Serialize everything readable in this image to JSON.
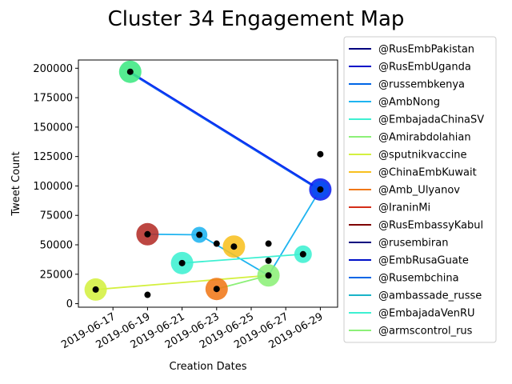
{
  "chart_data": {
    "type": "scatter",
    "title": "Cluster 34 Engagement Map",
    "xlabel": "Creation Dates",
    "ylabel": "Tweet Count",
    "xlim": [
      "2019-06-15",
      "2019-06-30"
    ],
    "ylim": [
      -3000,
      207000
    ],
    "xticks": [
      "2019-06-17",
      "2019-06-19",
      "2019-06-21",
      "2019-06-23",
      "2019-06-25",
      "2019-06-27",
      "2019-06-29"
    ],
    "yticks": [
      0,
      25000,
      50000,
      75000,
      100000,
      125000,
      150000,
      175000,
      200000
    ],
    "ytick_labels": [
      "0",
      "25000",
      "50000",
      "75000",
      "100000",
      "125000",
      "150000",
      "175000",
      "200000"
    ],
    "legend_position": "outside-right",
    "legend": [
      {
        "label": "@RusEmbPakistan",
        "color": "#00007f"
      },
      {
        "label": "@RusEmbUganda",
        "color": "#0010c8"
      },
      {
        "label": "@russembkenya",
        "color": "#0066e6"
      },
      {
        "label": "@AmbNong",
        "color": "#1fb4f0"
      },
      {
        "label": "@EmbajadaChinaSV",
        "color": "#3ef0d2"
      },
      {
        "label": "@Amirabdolahian",
        "color": "#8cf078"
      },
      {
        "label": "@sputnikvaccine",
        "color": "#d4f040"
      },
      {
        "label": "@ChinaEmbKuwait",
        "color": "#f8c020"
      },
      {
        "label": "@Amb_Ulyanov",
        "color": "#f07818"
      },
      {
        "label": "@IraninMi",
        "color": "#d42d18"
      },
      {
        "label": "@RusEmbassyKabul",
        "color": "#7f0000"
      },
      {
        "label": "@rusembiran",
        "color": "#00007f"
      },
      {
        "label": "@EmbRusaGuate",
        "color": "#0010c8"
      },
      {
        "label": "@Rusembchina",
        "color": "#0066e6"
      },
      {
        "label": "@ambassade_russe",
        "color": "#1ab4c8"
      },
      {
        "label": "@EmbajadaVenRU",
        "color": "#3ef0d2"
      },
      {
        "label": "@armscontrol_rus",
        "color": "#8cf078"
      }
    ],
    "bubbles": [
      {
        "x": "2019-06-18",
        "y": 197000,
        "color": "#3ee882",
        "size": 14
      },
      {
        "x": "2019-06-29",
        "y": 97000,
        "color": "#0a1ef0",
        "size": 14
      },
      {
        "x": "2019-06-29",
        "y": 97000,
        "color": "#0a50f0",
        "size": 11
      },
      {
        "x": "2019-06-19",
        "y": 59000,
        "color": "#b42d28",
        "size": 14
      },
      {
        "x": "2019-06-22",
        "y": 58500,
        "color": "#1fb4f0",
        "size": 10
      },
      {
        "x": "2019-06-24",
        "y": 48500,
        "color": "#f8c020",
        "size": 14
      },
      {
        "x": "2019-06-28",
        "y": 42000,
        "color": "#3ef0d2",
        "size": 11
      },
      {
        "x": "2019-06-21",
        "y": 34500,
        "color": "#3ef0d2",
        "size": 14
      },
      {
        "x": "2019-06-26",
        "y": 24000,
        "color": "#8cf078",
        "size": 14
      },
      {
        "x": "2019-06-23",
        "y": 12500,
        "color": "#f07818",
        "size": 14
      },
      {
        "x": "2019-06-16",
        "y": 12000,
        "color": "#d4f040",
        "size": 14
      }
    ],
    "points": [
      {
        "x": "2019-06-18",
        "y": 197000
      },
      {
        "x": "2019-06-29",
        "y": 127000
      },
      {
        "x": "2019-06-29",
        "y": 97000
      },
      {
        "x": "2019-06-19",
        "y": 59000
      },
      {
        "x": "2019-06-22",
        "y": 58500
      },
      {
        "x": "2019-06-23",
        "y": 51000
      },
      {
        "x": "2019-06-26",
        "y": 51000
      },
      {
        "x": "2019-06-24",
        "y": 48500
      },
      {
        "x": "2019-06-28",
        "y": 42000
      },
      {
        "x": "2019-06-26",
        "y": 36500
      },
      {
        "x": "2019-06-21",
        "y": 34500
      },
      {
        "x": "2019-06-26",
        "y": 24000
      },
      {
        "x": "2019-06-23",
        "y": 12500
      },
      {
        "x": "2019-06-16",
        "y": 12000
      },
      {
        "x": "2019-06-19",
        "y": 7500
      }
    ],
    "lines": [
      {
        "color": "#0a1ef0",
        "points": [
          {
            "x": "2019-06-18",
            "y": 197000
          },
          {
            "x": "2019-06-29",
            "y": 97000
          }
        ]
      },
      {
        "color": "#0a50f0",
        "points": [
          {
            "x": "2019-06-18",
            "y": 196000
          },
          {
            "x": "2019-06-29",
            "y": 96000
          }
        ]
      },
      {
        "color": "#1fb4f0",
        "points": [
          {
            "x": "2019-06-19",
            "y": 59000
          },
          {
            "x": "2019-06-22",
            "y": 58500
          },
          {
            "x": "2019-06-26",
            "y": 24000
          },
          {
            "x": "2019-06-29",
            "y": 97000
          }
        ]
      },
      {
        "color": "#3ef0d2",
        "points": [
          {
            "x": "2019-06-21",
            "y": 34500
          },
          {
            "x": "2019-06-28",
            "y": 42000
          }
        ]
      },
      {
        "color": "#8cf078",
        "points": [
          {
            "x": "2019-06-23",
            "y": 12500
          },
          {
            "x": "2019-06-26",
            "y": 24000
          }
        ]
      },
      {
        "color": "#d4f040",
        "points": [
          {
            "x": "2019-06-16",
            "y": 12000
          },
          {
            "x": "2019-06-26",
            "y": 24000
          }
        ]
      }
    ]
  }
}
